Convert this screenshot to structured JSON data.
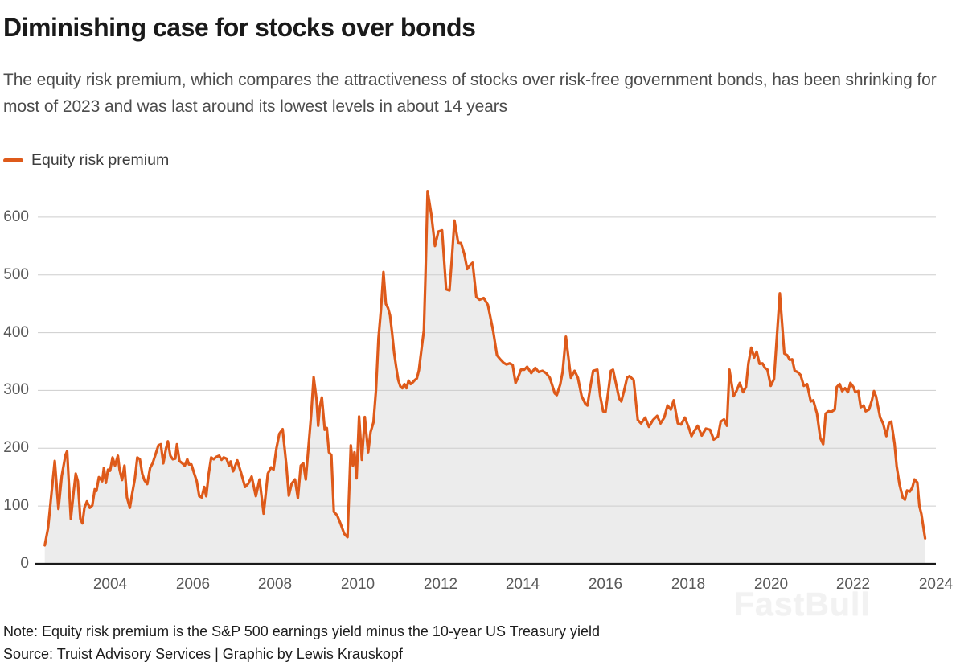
{
  "header": {
    "title": "Diminishing case for stocks over bonds",
    "subtitle": "The equity risk premium, which compares the attractiveness of stocks over risk-free government bonds, has been shrinking for most of 2023 and was last around its lowest levels in about 14 years"
  },
  "legend": {
    "label": "Equity risk premium",
    "color": "#DE5A1A"
  },
  "watermark": {
    "text": "FastBull"
  },
  "footer": {
    "note": "Note: Equity risk premium is the S&P 500 earnings yield minus the 10-year US Treasury yield",
    "source": "Source: Truist Advisory Services | Graphic by Lewis Krauskopf"
  },
  "chart_data": {
    "type": "line",
    "title": "Diminishing case for stocks over bonds",
    "series_name": "Equity risk premium",
    "line_color": "#DE5A1A",
    "area_color": "#ececec",
    "grid_color": "#cdcdcd",
    "axis_color": "#1a1a1a",
    "grid": true,
    "legend_position": "top-left",
    "xlabel": "",
    "ylabel": "",
    "xlim": [
      2002.25,
      2024
    ],
    "ylim": [
      0,
      650
    ],
    "yticks": [
      0,
      100,
      200,
      300,
      400,
      500,
      600
    ],
    "xticks": [
      2004,
      2006,
      2008,
      2010,
      2012,
      2014,
      2016,
      2018,
      2020,
      2022,
      2024
    ],
    "points": [
      [
        2002.42,
        32
      ],
      [
        2002.5,
        62
      ],
      [
        2002.58,
        120
      ],
      [
        2002.66,
        178
      ],
      [
        2002.75,
        95
      ],
      [
        2002.83,
        152
      ],
      [
        2002.92,
        188
      ],
      [
        2002.96,
        195
      ],
      [
        2003.0,
        143
      ],
      [
        2003.05,
        78
      ],
      [
        2003.12,
        126
      ],
      [
        2003.17,
        156
      ],
      [
        2003.22,
        143
      ],
      [
        2003.28,
        78
      ],
      [
        2003.33,
        70
      ],
      [
        2003.38,
        97
      ],
      [
        2003.44,
        108
      ],
      [
        2003.51,
        97
      ],
      [
        2003.57,
        101
      ],
      [
        2003.63,
        129
      ],
      [
        2003.67,
        126
      ],
      [
        2003.73,
        150
      ],
      [
        2003.81,
        143
      ],
      [
        2003.85,
        166
      ],
      [
        2003.9,
        140
      ],
      [
        2003.95,
        163
      ],
      [
        2004.0,
        161
      ],
      [
        2004.06,
        184
      ],
      [
        2004.12,
        170
      ],
      [
        2004.19,
        187
      ],
      [
        2004.23,
        163
      ],
      [
        2004.29,
        145
      ],
      [
        2004.35,
        170
      ],
      [
        2004.41,
        115
      ],
      [
        2004.48,
        97
      ],
      [
        2004.53,
        119
      ],
      [
        2004.6,
        147
      ],
      [
        2004.66,
        184
      ],
      [
        2004.72,
        181
      ],
      [
        2004.78,
        156
      ],
      [
        2004.83,
        145
      ],
      [
        2004.9,
        138
      ],
      [
        2004.97,
        166
      ],
      [
        2005.03,
        174
      ],
      [
        2005.09,
        187
      ],
      [
        2005.17,
        205
      ],
      [
        2005.23,
        207
      ],
      [
        2005.29,
        174
      ],
      [
        2005.36,
        201
      ],
      [
        2005.4,
        212
      ],
      [
        2005.46,
        187
      ],
      [
        2005.52,
        181
      ],
      [
        2005.58,
        182
      ],
      [
        2005.62,
        207
      ],
      [
        2005.68,
        178
      ],
      [
        2005.75,
        174
      ],
      [
        2005.81,
        170
      ],
      [
        2005.87,
        181
      ],
      [
        2005.91,
        172
      ],
      [
        2005.97,
        172
      ],
      [
        2006.04,
        156
      ],
      [
        2006.1,
        143
      ],
      [
        2006.16,
        117
      ],
      [
        2006.22,
        115
      ],
      [
        2006.28,
        133
      ],
      [
        2006.33,
        117
      ],
      [
        2006.39,
        156
      ],
      [
        2006.45,
        184
      ],
      [
        2006.51,
        181
      ],
      [
        2006.57,
        185
      ],
      [
        2006.64,
        187
      ],
      [
        2006.7,
        180
      ],
      [
        2006.75,
        184
      ],
      [
        2006.82,
        182
      ],
      [
        2006.88,
        170
      ],
      [
        2006.92,
        177
      ],
      [
        2006.98,
        160
      ],
      [
        2007.08,
        179
      ],
      [
        2007.17,
        158
      ],
      [
        2007.27,
        133
      ],
      [
        2007.35,
        139
      ],
      [
        2007.43,
        151
      ],
      [
        2007.53,
        117
      ],
      [
        2007.62,
        146
      ],
      [
        2007.72,
        87
      ],
      [
        2007.82,
        156
      ],
      [
        2007.9,
        167
      ],
      [
        2007.96,
        163
      ],
      [
        2008.03,
        200
      ],
      [
        2008.1,
        225
      ],
      [
        2008.18,
        233
      ],
      [
        2008.27,
        170
      ],
      [
        2008.33,
        118
      ],
      [
        2008.4,
        139
      ],
      [
        2008.48,
        146
      ],
      [
        2008.55,
        114
      ],
      [
        2008.62,
        170
      ],
      [
        2008.68,
        174
      ],
      [
        2008.74,
        146
      ],
      [
        2008.8,
        198
      ],
      [
        2008.87,
        258
      ],
      [
        2008.93,
        323
      ],
      [
        2009.0,
        284
      ],
      [
        2009.04,
        239
      ],
      [
        2009.08,
        272
      ],
      [
        2009.13,
        288
      ],
      [
        2009.2,
        232
      ],
      [
        2009.25,
        235
      ],
      [
        2009.3,
        193
      ],
      [
        2009.36,
        188
      ],
      [
        2009.42,
        90
      ],
      [
        2009.5,
        84
      ],
      [
        2009.58,
        70
      ],
      [
        2009.67,
        52
      ],
      [
        2009.75,
        46
      ],
      [
        2009.83,
        205
      ],
      [
        2009.88,
        170
      ],
      [
        2009.92,
        193
      ],
      [
        2009.97,
        148
      ],
      [
        2010.03,
        255
      ],
      [
        2010.1,
        180
      ],
      [
        2010.17,
        254
      ],
      [
        2010.25,
        193
      ],
      [
        2010.31,
        228
      ],
      [
        2010.38,
        245
      ],
      [
        2010.44,
        300
      ],
      [
        2010.5,
        390
      ],
      [
        2010.56,
        440
      ],
      [
        2010.62,
        505
      ],
      [
        2010.68,
        450
      ],
      [
        2010.73,
        443
      ],
      [
        2010.78,
        430
      ],
      [
        2010.83,
        400
      ],
      [
        2010.88,
        365
      ],
      [
        2010.93,
        340
      ],
      [
        2010.98,
        318
      ],
      [
        2011.03,
        307
      ],
      [
        2011.08,
        304
      ],
      [
        2011.13,
        311
      ],
      [
        2011.18,
        304
      ],
      [
        2011.23,
        317
      ],
      [
        2011.28,
        311
      ],
      [
        2011.33,
        314
      ],
      [
        2011.38,
        318
      ],
      [
        2011.43,
        321
      ],
      [
        2011.48,
        335
      ],
      [
        2011.54,
        370
      ],
      [
        2011.6,
        404
      ],
      [
        2011.64,
        500
      ],
      [
        2011.69,
        645
      ],
      [
        2011.78,
        605
      ],
      [
        2011.87,
        550
      ],
      [
        2011.95,
        575
      ],
      [
        2012.04,
        577
      ],
      [
        2012.14,
        475
      ],
      [
        2012.22,
        473
      ],
      [
        2012.28,
        530
      ],
      [
        2012.34,
        594
      ],
      [
        2012.43,
        556
      ],
      [
        2012.5,
        555
      ],
      [
        2012.58,
        536
      ],
      [
        2012.65,
        510
      ],
      [
        2012.72,
        517
      ],
      [
        2012.78,
        521
      ],
      [
        2012.87,
        462
      ],
      [
        2012.95,
        457
      ],
      [
        2013.05,
        460
      ],
      [
        2013.15,
        448
      ],
      [
        2013.28,
        402
      ],
      [
        2013.37,
        361
      ],
      [
        2013.45,
        354
      ],
      [
        2013.53,
        348
      ],
      [
        2013.6,
        345
      ],
      [
        2013.68,
        347
      ],
      [
        2013.75,
        344
      ],
      [
        2013.82,
        313
      ],
      [
        2013.88,
        322
      ],
      [
        2013.95,
        336
      ],
      [
        2014.03,
        336
      ],
      [
        2014.1,
        341
      ],
      [
        2014.2,
        330
      ],
      [
        2014.3,
        339
      ],
      [
        2014.38,
        332
      ],
      [
        2014.47,
        334
      ],
      [
        2014.56,
        330
      ],
      [
        2014.65,
        322
      ],
      [
        2014.77,
        295
      ],
      [
        2014.82,
        292
      ],
      [
        2014.9,
        310
      ],
      [
        2014.96,
        332
      ],
      [
        2015.04,
        393
      ],
      [
        2015.16,
        322
      ],
      [
        2015.25,
        334
      ],
      [
        2015.33,
        322
      ],
      [
        2015.42,
        290
      ],
      [
        2015.51,
        277
      ],
      [
        2015.56,
        274
      ],
      [
        2015.64,
        310
      ],
      [
        2015.7,
        334
      ],
      [
        2015.8,
        336
      ],
      [
        2015.87,
        290
      ],
      [
        2015.94,
        264
      ],
      [
        2016.0,
        263
      ],
      [
        2016.07,
        300
      ],
      [
        2016.13,
        334
      ],
      [
        2016.18,
        336
      ],
      [
        2016.33,
        286
      ],
      [
        2016.38,
        281
      ],
      [
        2016.45,
        300
      ],
      [
        2016.52,
        322
      ],
      [
        2016.58,
        325
      ],
      [
        2016.68,
        318
      ],
      [
        2016.78,
        249
      ],
      [
        2016.86,
        243
      ],
      [
        2016.96,
        253
      ],
      [
        2017.05,
        237
      ],
      [
        2017.15,
        249
      ],
      [
        2017.25,
        256
      ],
      [
        2017.33,
        243
      ],
      [
        2017.42,
        253
      ],
      [
        2017.5,
        274
      ],
      [
        2017.58,
        267
      ],
      [
        2017.65,
        283
      ],
      [
        2017.75,
        243
      ],
      [
        2017.83,
        241
      ],
      [
        2017.92,
        253
      ],
      [
        2018.02,
        235
      ],
      [
        2018.08,
        221
      ],
      [
        2018.14,
        229
      ],
      [
        2018.23,
        239
      ],
      [
        2018.33,
        222
      ],
      [
        2018.43,
        234
      ],
      [
        2018.53,
        232
      ],
      [
        2018.62,
        215
      ],
      [
        2018.72,
        220
      ],
      [
        2018.79,
        246
      ],
      [
        2018.87,
        250
      ],
      [
        2018.94,
        239
      ],
      [
        2019.0,
        336
      ],
      [
        2019.1,
        290
      ],
      [
        2019.17,
        299
      ],
      [
        2019.25,
        313
      ],
      [
        2019.33,
        297
      ],
      [
        2019.4,
        306
      ],
      [
        2019.46,
        347
      ],
      [
        2019.53,
        374
      ],
      [
        2019.6,
        357
      ],
      [
        2019.66,
        367
      ],
      [
        2019.73,
        346
      ],
      [
        2019.8,
        347
      ],
      [
        2019.86,
        339
      ],
      [
        2019.92,
        336
      ],
      [
        2020.0,
        308
      ],
      [
        2020.08,
        320
      ],
      [
        2020.22,
        468
      ],
      [
        2020.33,
        364
      ],
      [
        2020.4,
        361
      ],
      [
        2020.46,
        353
      ],
      [
        2020.52,
        354
      ],
      [
        2020.58,
        334
      ],
      [
        2020.65,
        332
      ],
      [
        2020.72,
        327
      ],
      [
        2020.8,
        308
      ],
      [
        2020.88,
        311
      ],
      [
        2020.97,
        281
      ],
      [
        2021.03,
        283
      ],
      [
        2021.12,
        260
      ],
      [
        2021.2,
        218
      ],
      [
        2021.27,
        207
      ],
      [
        2021.33,
        260
      ],
      [
        2021.4,
        264
      ],
      [
        2021.47,
        263
      ],
      [
        2021.55,
        267
      ],
      [
        2021.6,
        306
      ],
      [
        2021.67,
        311
      ],
      [
        2021.73,
        299
      ],
      [
        2021.8,
        304
      ],
      [
        2021.87,
        297
      ],
      [
        2021.93,
        313
      ],
      [
        2022.0,
        306
      ],
      [
        2022.05,
        297
      ],
      [
        2022.12,
        299
      ],
      [
        2022.18,
        271
      ],
      [
        2022.25,
        274
      ],
      [
        2022.3,
        264
      ],
      [
        2022.38,
        267
      ],
      [
        2022.45,
        283
      ],
      [
        2022.5,
        299
      ],
      [
        2022.55,
        290
      ],
      [
        2022.65,
        253
      ],
      [
        2022.72,
        243
      ],
      [
        2022.8,
        221
      ],
      [
        2022.86,
        243
      ],
      [
        2022.92,
        246
      ],
      [
        2023.0,
        208
      ],
      [
        2023.05,
        169
      ],
      [
        2023.12,
        137
      ],
      [
        2023.2,
        114
      ],
      [
        2023.25,
        111
      ],
      [
        2023.3,
        127
      ],
      [
        2023.37,
        125
      ],
      [
        2023.43,
        132
      ],
      [
        2023.48,
        146
      ],
      [
        2023.55,
        141
      ],
      [
        2023.6,
        100
      ],
      [
        2023.65,
        86
      ],
      [
        2023.7,
        62
      ],
      [
        2023.74,
        44
      ]
    ]
  }
}
